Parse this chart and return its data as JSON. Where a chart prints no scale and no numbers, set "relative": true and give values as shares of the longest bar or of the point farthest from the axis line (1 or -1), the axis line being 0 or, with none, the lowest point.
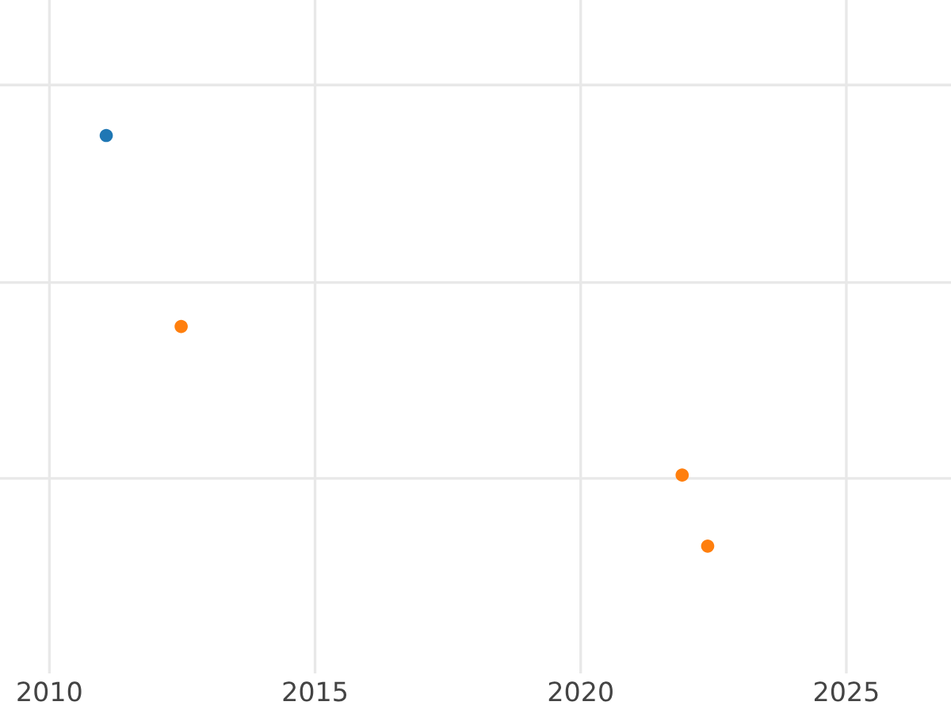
{
  "chart_data": {
    "type": "scatter",
    "relative": true,
    "xlim": [
      2009.07,
      2026.97
    ],
    "xticks": [
      2010,
      2015,
      2020,
      2025
    ],
    "grid": true,
    "tick_labels": "x",
    "marker": "circle",
    "series": [
      {
        "color": "#1f77b4",
        "x": [
          2011.07
        ],
        "values": [
          1
        ]
      },
      {
        "color": "#ff7f0e",
        "x": [
          2012.48,
          2021.91,
          2022.39
        ],
        "values": [
          0.535,
          0.173,
          0
        ]
      }
    ]
  }
}
